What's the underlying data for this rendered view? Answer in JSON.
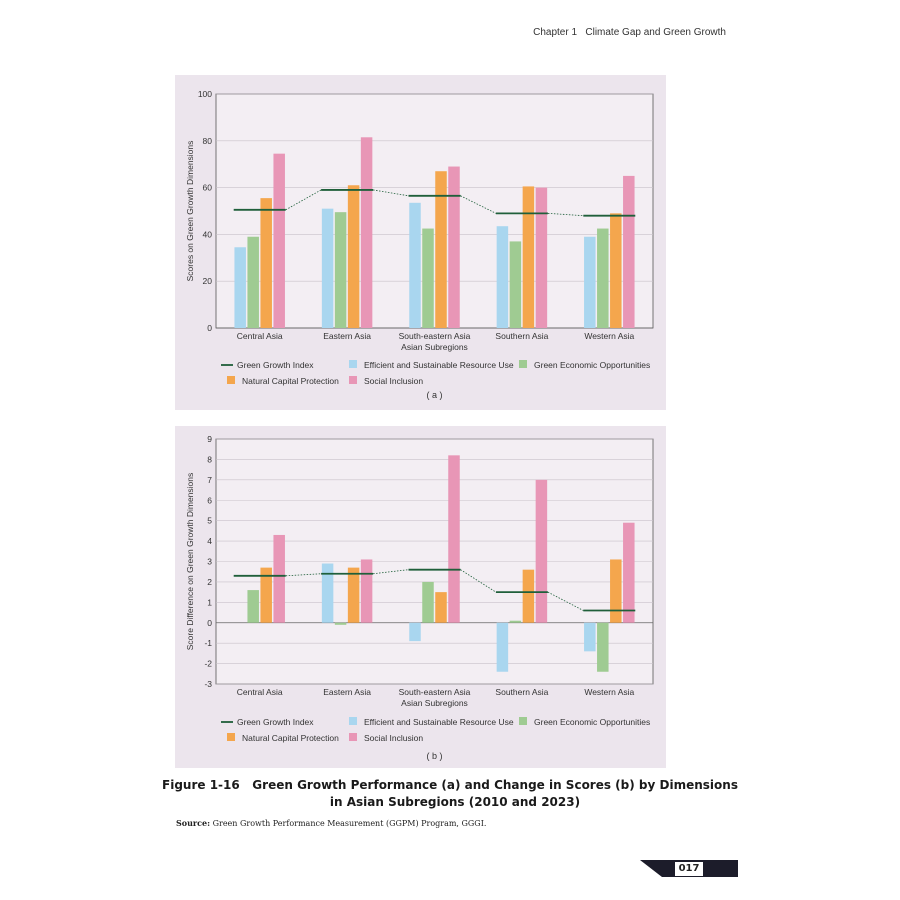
{
  "header": {
    "chapter": "Chapter 1",
    "chapter_title": "Climate Gap and Green Growth"
  },
  "colors": {
    "ggi": "#1f5f3a",
    "efficient": "#a9d6ef",
    "green_economic": "#9fcb92",
    "natural_capital": "#f4a64d",
    "social_inclusion": "#e896b6"
  },
  "chart_data": [
    {
      "type": "bar",
      "panel_label": "( a )",
      "categories": [
        "Central Asia",
        "Eastern Asia",
        "South-eastern Asia",
        "Southern Asia",
        "Western Asia"
      ],
      "xlabel": "Asian Subregions",
      "ylabel": "Scores on Green Growth Dimensions",
      "ylim": [
        0,
        100
      ],
      "yticks": [
        0,
        20,
        40,
        60,
        80,
        100
      ],
      "grid": true,
      "legend": "bottom",
      "series": [
        {
          "name": "Efficient and Sustainable Resource Use",
          "key": "efficient",
          "values": [
            34.5,
            51,
            53.5,
            43.5,
            39
          ]
        },
        {
          "name": "Green Economic Opportunities",
          "key": "green_economic",
          "values": [
            39,
            49.5,
            42.5,
            37,
            42.5
          ]
        },
        {
          "name": "Natural Capital Protection",
          "key": "natural_capital",
          "values": [
            55.5,
            61,
            67,
            60.5,
            49
          ]
        },
        {
          "name": "Social Inclusion",
          "key": "social_inclusion",
          "values": [
            74.5,
            81.5,
            69,
            60,
            65
          ]
        }
      ],
      "ggi": {
        "name": "Green Growth Index",
        "values": [
          50.5,
          59,
          56.5,
          49,
          48
        ]
      }
    },
    {
      "type": "bar",
      "panel_label": "( b )",
      "categories": [
        "Central Asia",
        "Eastern Asia",
        "South-eastern Asia",
        "Southern Asia",
        "Western Asia"
      ],
      "xlabel": "Asian Subregions",
      "ylabel": "Score Difference on Green Growth Dimensions",
      "ylim": [
        -3,
        9
      ],
      "yticks": [
        -3,
        -2,
        -1,
        0,
        1,
        2,
        3,
        4,
        5,
        6,
        7,
        8,
        9
      ],
      "grid": true,
      "legend": "bottom",
      "series": [
        {
          "name": "Efficient and Sustainable Resource Use",
          "key": "efficient",
          "values": [
            0,
            2.9,
            -0.9,
            -2.4,
            -1.4
          ]
        },
        {
          "name": "Green Economic Opportunities",
          "key": "green_economic",
          "values": [
            1.6,
            -0.1,
            2.0,
            0.1,
            -2.4
          ]
        },
        {
          "name": "Natural Capital Protection",
          "key": "natural_capital",
          "values": [
            2.7,
            2.7,
            1.5,
            2.6,
            3.1
          ]
        },
        {
          "name": "Social Inclusion",
          "key": "social_inclusion",
          "values": [
            4.3,
            3.1,
            8.2,
            7.0,
            4.9
          ]
        }
      ],
      "ggi": {
        "name": "Green Growth Index",
        "values": [
          2.3,
          2.4,
          2.6,
          1.5,
          0.6
        ]
      }
    }
  ],
  "caption": {
    "figure_number": "Figure 1-16",
    "line1": "Green Growth Performance (a) and Change in Scores (b) by Dimensions",
    "line2": "in Asian Subregions (2010 and 2023)"
  },
  "source": {
    "label": "Source:",
    "text": "Green Growth Performance Measurement (GGPM) Program, GGGI."
  },
  "page_number": "017"
}
